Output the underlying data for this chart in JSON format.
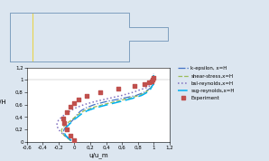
{
  "title": "",
  "xlabel": "u/u_m",
  "ylabel": "y/H",
  "xlim": [
    -0.6,
    1.2
  ],
  "ylim": [
    0,
    1.2
  ],
  "xticks": [
    -0.6,
    -0.4,
    -0.2,
    0.0,
    0.2,
    0.4,
    0.6,
    0.8,
    1.0,
    1.2
  ],
  "yticks": [
    0.0,
    0.2,
    0.4,
    0.6,
    0.8,
    1.0,
    1.2
  ],
  "bg_color": "#dce6f0",
  "plot_bg_color": "#ffffff",
  "k_epsilon": {
    "x": [
      -0.05,
      -0.08,
      -0.12,
      -0.14,
      -0.13,
      -0.1,
      -0.06,
      -0.02,
      0.01,
      0.04,
      0.08,
      0.15,
      0.25,
      0.4,
      0.6,
      0.78,
      0.88,
      0.94,
      0.97,
      0.99,
      1.0,
      1.0,
      1.0,
      1.0
    ],
    "y": [
      0.02,
      0.06,
      0.1,
      0.15,
      0.2,
      0.25,
      0.3,
      0.35,
      0.4,
      0.45,
      0.5,
      0.55,
      0.6,
      0.65,
      0.7,
      0.75,
      0.8,
      0.85,
      0.88,
      0.92,
      0.95,
      1.0,
      1.05,
      1.1
    ],
    "color": "#4472c4",
    "style": "-.",
    "label": "k-epsilon, x=H"
  },
  "shear_stress": {
    "x": [
      -0.05,
      -0.09,
      -0.13,
      -0.16,
      -0.16,
      -0.13,
      -0.09,
      -0.04,
      0.01,
      0.06,
      0.12,
      0.22,
      0.36,
      0.52,
      0.68,
      0.82,
      0.9,
      0.95,
      0.98,
      1.0,
      1.0,
      1.0,
      1.0
    ],
    "y": [
      0.02,
      0.06,
      0.1,
      0.15,
      0.2,
      0.25,
      0.3,
      0.35,
      0.4,
      0.45,
      0.5,
      0.55,
      0.6,
      0.65,
      0.7,
      0.75,
      0.8,
      0.85,
      0.9,
      0.93,
      0.97,
      1.02,
      1.08
    ],
    "color": "#9bbb59",
    "style": "--",
    "label": "shear-stress,x=H"
  },
  "bsl_reynolds": {
    "x": [
      -0.04,
      -0.08,
      -0.12,
      -0.17,
      -0.2,
      -0.22,
      -0.22,
      -0.2,
      -0.16,
      -0.11,
      -0.05,
      0.02,
      0.12,
      0.26,
      0.43,
      0.6,
      0.74,
      0.85,
      0.92,
      0.97,
      0.99,
      1.0,
      1.0,
      1.0
    ],
    "y": [
      0.02,
      0.06,
      0.1,
      0.15,
      0.2,
      0.25,
      0.3,
      0.35,
      0.4,
      0.45,
      0.5,
      0.55,
      0.6,
      0.65,
      0.7,
      0.75,
      0.8,
      0.85,
      0.88,
      0.92,
      0.95,
      1.0,
      1.05,
      1.1
    ],
    "color": "#7f6fbf",
    "style": ":",
    "label": "bsl-reynolds,x=H"
  },
  "ssg_reynolds": {
    "x": [
      -0.04,
      -0.08,
      -0.11,
      -0.13,
      -0.12,
      -0.09,
      -0.05,
      -0.01,
      0.04,
      0.09,
      0.16,
      0.27,
      0.42,
      0.58,
      0.73,
      0.85,
      0.92,
      0.96,
      0.98,
      1.0,
      1.0,
      1.0,
      1.0
    ],
    "y": [
      0.02,
      0.06,
      0.1,
      0.15,
      0.2,
      0.25,
      0.3,
      0.35,
      0.4,
      0.45,
      0.5,
      0.55,
      0.6,
      0.65,
      0.7,
      0.75,
      0.8,
      0.85,
      0.9,
      0.93,
      0.97,
      1.02,
      1.08
    ],
    "color": "#00b0f0",
    "style": "--",
    "label": "ssg-reynolds,x=H"
  },
  "experiment": {
    "x": [
      0.0,
      -0.05,
      -0.1,
      -0.13,
      -0.14,
      -0.1,
      -0.05,
      0.0,
      0.05,
      0.15,
      0.32,
      0.55,
      0.76,
      0.88,
      0.94,
      0.97,
      0.99,
      1.0
    ],
    "y": [
      0.02,
      0.1,
      0.2,
      0.3,
      0.38,
      0.48,
      0.56,
      0.62,
      0.68,
      0.74,
      0.8,
      0.86,
      0.9,
      0.93,
      0.96,
      0.98,
      1.0,
      1.04
    ],
    "color": "#c0504d",
    "marker": "s",
    "label": "Experiment"
  },
  "room_color": "#dce6f0",
  "room_border": "#7f9fbf",
  "vline_color": "#e8d44d"
}
